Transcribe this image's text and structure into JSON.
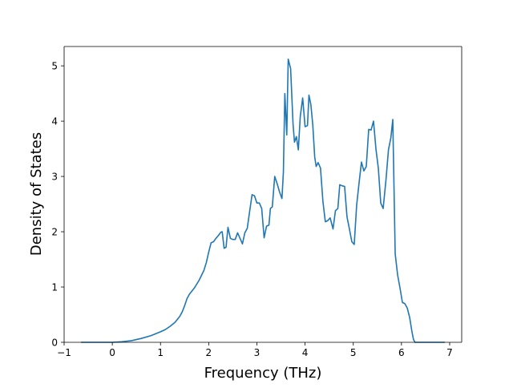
{
  "chart_data": {
    "type": "line",
    "title": "",
    "xlabel": "Frequency (THz)",
    "ylabel": "Density of States",
    "xlim": [
      -1,
      7.25
    ],
    "ylim": [
      0,
      5.35
    ],
    "xticks": [
      -1,
      0,
      1,
      2,
      3,
      4,
      5,
      6,
      7
    ],
    "yticks": [
      0,
      1,
      2,
      3,
      4,
      5
    ],
    "grid": false,
    "legend": "none",
    "colors": {
      "line": "#1f77b4",
      "axes": "#000000",
      "background": "#ffffff"
    },
    "series": [
      {
        "x": [
          -0.65,
          -0.4,
          -0.2,
          0.0,
          0.2,
          0.4,
          0.6,
          0.8,
          1.0,
          1.1,
          1.2,
          1.3,
          1.4,
          1.45,
          1.5,
          1.55,
          1.6,
          1.7,
          1.8,
          1.9,
          1.95,
          2.0,
          2.05,
          2.1,
          2.15,
          2.2,
          2.25,
          2.28,
          2.32,
          2.36,
          2.4,
          2.45,
          2.5,
          2.55,
          2.6,
          2.65,
          2.7,
          2.75,
          2.8,
          2.85,
          2.9,
          2.95,
          3.0,
          3.05,
          3.1,
          3.15,
          3.2,
          3.25,
          3.28,
          3.32,
          3.37,
          3.42,
          3.47,
          3.52,
          3.55,
          3.58,
          3.62,
          3.65,
          3.7,
          3.75,
          3.78,
          3.82,
          3.86,
          3.9,
          3.95,
          4.0,
          4.05,
          4.08,
          4.12,
          4.16,
          4.2,
          4.23,
          4.27,
          4.32,
          4.37,
          4.42,
          4.47,
          4.52,
          4.58,
          4.63,
          4.68,
          4.72,
          4.77,
          4.82,
          4.87,
          4.92,
          4.97,
          5.02,
          5.07,
          5.12,
          5.17,
          5.22,
          5.27,
          5.32,
          5.37,
          5.42,
          5.47,
          5.52,
          5.57,
          5.62,
          5.68,
          5.73,
          5.78,
          5.82,
          5.87,
          5.92,
          5.97,
          6.02,
          6.07,
          6.12,
          6.17,
          6.22,
          6.25,
          6.28,
          6.3,
          6.4,
          6.6,
          6.9
        ],
        "y": [
          0,
          0,
          0,
          0.0,
          0.01,
          0.03,
          0.07,
          0.12,
          0.19,
          0.23,
          0.29,
          0.36,
          0.47,
          0.55,
          0.66,
          0.79,
          0.87,
          0.98,
          1.12,
          1.3,
          1.44,
          1.63,
          1.8,
          1.82,
          1.88,
          1.93,
          1.99,
          2.0,
          1.7,
          1.72,
          2.08,
          1.88,
          1.86,
          1.86,
          1.98,
          1.88,
          1.78,
          1.98,
          2.06,
          2.37,
          2.67,
          2.65,
          2.52,
          2.52,
          2.42,
          1.89,
          2.1,
          2.12,
          2.42,
          2.45,
          3.0,
          2.87,
          2.72,
          2.6,
          3.08,
          4.5,
          3.75,
          5.12,
          4.95,
          3.95,
          3.62,
          3.72,
          3.48,
          4.08,
          4.42,
          3.9,
          3.92,
          4.47,
          4.3,
          3.93,
          3.35,
          3.18,
          3.25,
          3.15,
          2.55,
          2.18,
          2.2,
          2.25,
          2.05,
          2.38,
          2.42,
          2.85,
          2.83,
          2.82,
          2.27,
          2.05,
          1.82,
          1.77,
          2.48,
          2.88,
          3.26,
          3.1,
          3.18,
          3.85,
          3.84,
          4.0,
          3.5,
          3.15,
          2.52,
          2.42,
          2.95,
          3.48,
          3.7,
          4.03,
          1.6,
          1.22,
          0.98,
          0.72,
          0.7,
          0.62,
          0.45,
          0.18,
          0.05,
          0,
          0,
          0,
          0,
          0
        ]
      }
    ]
  }
}
